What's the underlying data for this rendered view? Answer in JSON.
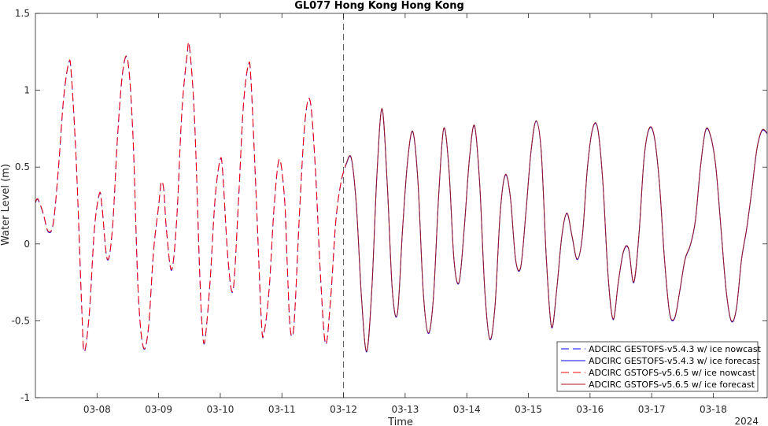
{
  "chart_data": {
    "type": "line",
    "title": "GL077 Hong Kong Hong Kong",
    "xlabel": "Time",
    "ylabel": "Water Level (m)",
    "year_label": "2024",
    "xlim": [
      "2024-03-07T00:00",
      "2024-03-18T21:00"
    ],
    "ylim": [
      -1,
      1.5
    ],
    "x_ticks": [
      "03-08",
      "03-09",
      "03-10",
      "03-11",
      "03-12",
      "03-13",
      "03-14",
      "03-15",
      "03-16",
      "03-17",
      "03-18"
    ],
    "y_ticks": [
      -1,
      -0.5,
      0,
      0.5,
      1,
      1.5
    ],
    "y_tick_labels": [
      "-1",
      "-0.5",
      "0",
      "0.5",
      "1",
      "1.5"
    ],
    "grid": false,
    "forecast_start": "2024-03-12T00:00",
    "legend_position": "bottom-right",
    "series": [
      {
        "name": "ADCIRC GESTOFS-v5.4.3 w/ ice nowcast",
        "color": "#0000ff",
        "dash": "dashed"
      },
      {
        "name": "ADCIRC GESTOFS-v5.4.3 w/ ice forecast",
        "color": "#0000ff",
        "dash": "solid"
      },
      {
        "name": "ADCIRC GSTOFS-v5.6.5 w/ ice nowcast",
        "color": "#ff0000",
        "dash": "dashed"
      },
      {
        "name": "ADCIRC GSTOFS-v5.6.5 w/ ice forecast",
        "color": "#a0181c",
        "dash": "solid"
      }
    ],
    "points": [
      [
        "2024-03-07T00:00",
        0.27
      ],
      [
        "2024-03-07T01:00",
        0.29
      ],
      [
        "2024-03-07T03:00",
        0.2
      ],
      [
        "2024-03-07T05:00",
        0.08
      ],
      [
        "2024-03-07T07:00",
        0.14
      ],
      [
        "2024-03-07T09:00",
        0.5
      ],
      [
        "2024-03-07T11:00",
        0.95
      ],
      [
        "2024-03-07T13:00",
        1.18
      ],
      [
        "2024-03-07T14:00",
        1.1
      ],
      [
        "2024-03-07T16:00",
        0.5
      ],
      [
        "2024-03-07T18:00",
        -0.4
      ],
      [
        "2024-03-07T19:00",
        -0.7
      ],
      [
        "2024-03-07T21:00",
        -0.45
      ],
      [
        "2024-03-07T23:00",
        0.1
      ],
      [
        "2024-03-08T01:00",
        0.33
      ],
      [
        "2024-03-08T02:00",
        0.23
      ],
      [
        "2024-03-08T04:00",
        -0.1
      ],
      [
        "2024-03-08T06:00",
        0.1
      ],
      [
        "2024-03-08T08:00",
        0.7
      ],
      [
        "2024-03-08T10:00",
        1.12
      ],
      [
        "2024-03-08T12:00",
        1.19
      ],
      [
        "2024-03-08T14:00",
        0.7
      ],
      [
        "2024-03-08T16:00",
        -0.3
      ],
      [
        "2024-03-08T18:00",
        -0.67
      ],
      [
        "2024-03-08T20:00",
        -0.55
      ],
      [
        "2024-03-08T22:00",
        -0.05
      ],
      [
        "2024-03-09T00:00",
        0.25
      ],
      [
        "2024-03-09T01:00",
        0.4
      ],
      [
        "2024-03-09T02:00",
        0.35
      ],
      [
        "2024-03-09T03:00",
        0.1
      ],
      [
        "2024-03-09T05:00",
        -0.17
      ],
      [
        "2024-03-09T07:00",
        0.15
      ],
      [
        "2024-03-09T09:00",
        0.85
      ],
      [
        "2024-03-09T11:00",
        1.22
      ],
      [
        "2024-03-09T12:00",
        1.28
      ],
      [
        "2024-03-09T14:00",
        0.8
      ],
      [
        "2024-03-09T16:00",
        -0.2
      ],
      [
        "2024-03-09T17:00",
        -0.55
      ],
      [
        "2024-03-09T18:00",
        -0.63
      ],
      [
        "2024-03-09T20:00",
        -0.25
      ],
      [
        "2024-03-09T22:00",
        0.3
      ],
      [
        "2024-03-10T00:00",
        0.55
      ],
      [
        "2024-03-10T01:00",
        0.45
      ],
      [
        "2024-03-10T03:00",
        -0.1
      ],
      [
        "2024-03-10T05:00",
        -0.3
      ],
      [
        "2024-03-10T07:00",
        0.25
      ],
      [
        "2024-03-10T09:00",
        0.9
      ],
      [
        "2024-03-10T11:00",
        1.17
      ],
      [
        "2024-03-10T12:00",
        1.05
      ],
      [
        "2024-03-10T14:00",
        0.3
      ],
      [
        "2024-03-10T16:00",
        -0.5
      ],
      [
        "2024-03-10T17:00",
        -0.58
      ],
      [
        "2024-03-10T19:00",
        -0.3
      ],
      [
        "2024-03-10T21:00",
        0.25
      ],
      [
        "2024-03-10T23:00",
        0.55
      ],
      [
        "2024-03-11T01:00",
        0.3
      ],
      [
        "2024-03-11T02:00",
        -0.1
      ],
      [
        "2024-03-11T03:00",
        -0.5
      ],
      [
        "2024-03-11T04:00",
        -0.6
      ],
      [
        "2024-03-11T05:00",
        -0.45
      ],
      [
        "2024-03-11T07:00",
        0.25
      ],
      [
        "2024-03-11T09:00",
        0.8
      ],
      [
        "2024-03-11T11:00",
        0.93
      ],
      [
        "2024-03-11T13:00",
        0.5
      ],
      [
        "2024-03-11T15:00",
        -0.2
      ],
      [
        "2024-03-11T17:00",
        -0.65
      ],
      [
        "2024-03-11T19:00",
        -0.35
      ],
      [
        "2024-03-11T21:00",
        0.15
      ],
      [
        "2024-03-11T23:00",
        0.4
      ],
      [
        "2024-03-12T01:00",
        0.52
      ],
      [
        "2024-03-12T03:00",
        0.56
      ],
      [
        "2024-03-12T05:00",
        0.25
      ],
      [
        "2024-03-12T07:00",
        -0.35
      ],
      [
        "2024-03-12T09:00",
        -0.7
      ],
      [
        "2024-03-12T11:00",
        -0.3
      ],
      [
        "2024-03-12T13:00",
        0.45
      ],
      [
        "2024-03-12T15:00",
        0.88
      ],
      [
        "2024-03-12T17:00",
        0.4
      ],
      [
        "2024-03-12T19:00",
        -0.3
      ],
      [
        "2024-03-12T21:00",
        -0.45
      ],
      [
        "2024-03-12T23:00",
        0.1
      ],
      [
        "2024-03-13T01:00",
        0.55
      ],
      [
        "2024-03-13T03:00",
        0.73
      ],
      [
        "2024-03-13T05:00",
        0.4
      ],
      [
        "2024-03-13T07:00",
        -0.3
      ],
      [
        "2024-03-13T09:00",
        -0.58
      ],
      [
        "2024-03-13T11:00",
        -0.35
      ],
      [
        "2024-03-13T13:00",
        0.3
      ],
      [
        "2024-03-13T15:00",
        0.75
      ],
      [
        "2024-03-13T17:00",
        0.5
      ],
      [
        "2024-03-13T19:00",
        -0.1
      ],
      [
        "2024-03-13T21:00",
        -0.25
      ],
      [
        "2024-03-13T23:00",
        0.1
      ],
      [
        "2024-03-14T01:00",
        0.55
      ],
      [
        "2024-03-14T03:00",
        0.77
      ],
      [
        "2024-03-14T05:00",
        0.4
      ],
      [
        "2024-03-14T07:00",
        -0.3
      ],
      [
        "2024-03-14T09:00",
        -0.62
      ],
      [
        "2024-03-14T11:00",
        -0.4
      ],
      [
        "2024-03-14T13:00",
        0.2
      ],
      [
        "2024-03-14T15:00",
        0.45
      ],
      [
        "2024-03-14T17:00",
        0.3
      ],
      [
        "2024-03-14T19:00",
        -0.1
      ],
      [
        "2024-03-14T21:00",
        -0.15
      ],
      [
        "2024-03-14T23:00",
        0.2
      ],
      [
        "2024-03-15T01:00",
        0.6
      ],
      [
        "2024-03-15T03:00",
        0.8
      ],
      [
        "2024-03-15T05:00",
        0.6
      ],
      [
        "2024-03-15T07:00",
        -0.1
      ],
      [
        "2024-03-15T09:00",
        -0.54
      ],
      [
        "2024-03-15T11:00",
        -0.3
      ],
      [
        "2024-03-15T13:00",
        0.05
      ],
      [
        "2024-03-15T15:00",
        0.2
      ],
      [
        "2024-03-15T17:00",
        0.05
      ],
      [
        "2024-03-15T19:00",
        -0.1
      ],
      [
        "2024-03-15T21:00",
        0.05
      ],
      [
        "2024-03-15T23:00",
        0.5
      ],
      [
        "2024-03-16T01:00",
        0.75
      ],
      [
        "2024-03-16T03:00",
        0.75
      ],
      [
        "2024-03-16T05:00",
        0.4
      ],
      [
        "2024-03-16T07:00",
        -0.2
      ],
      [
        "2024-03-16T09:00",
        -0.49
      ],
      [
        "2024-03-16T11:00",
        -0.25
      ],
      [
        "2024-03-16T13:00",
        -0.05
      ],
      [
        "2024-03-16T15:00",
        -0.03
      ],
      [
        "2024-03-16T17:00",
        -0.25
      ],
      [
        "2024-03-16T19:00",
        0.05
      ],
      [
        "2024-03-16T21:00",
        0.55
      ],
      [
        "2024-03-16T23:00",
        0.75
      ],
      [
        "2024-03-17T01:00",
        0.7
      ],
      [
        "2024-03-17T03:00",
        0.4
      ],
      [
        "2024-03-17T05:00",
        -0.1
      ],
      [
        "2024-03-17T07:00",
        -0.45
      ],
      [
        "2024-03-17T09:00",
        -0.48
      ],
      [
        "2024-03-17T11:00",
        -0.3
      ],
      [
        "2024-03-17T13:00",
        -0.1
      ],
      [
        "2024-03-17T15:00",
        -0.01
      ],
      [
        "2024-03-17T17:00",
        0.15
      ],
      [
        "2024-03-17T19:00",
        0.5
      ],
      [
        "2024-03-17T21:00",
        0.74
      ],
      [
        "2024-03-17T23:00",
        0.7
      ],
      [
        "2024-03-18T01:00",
        0.5
      ],
      [
        "2024-03-18T03:00",
        0.1
      ],
      [
        "2024-03-18T05:00",
        -0.3
      ],
      [
        "2024-03-18T07:00",
        -0.5
      ],
      [
        "2024-03-18T09:00",
        -0.42
      ],
      [
        "2024-03-18T11:00",
        -0.1
      ],
      [
        "2024-03-18T13:00",
        0.1
      ],
      [
        "2024-03-18T15:00",
        0.35
      ],
      [
        "2024-03-18T17:00",
        0.62
      ],
      [
        "2024-03-18T19:00",
        0.74
      ],
      [
        "2024-03-18T21:00",
        0.72
      ]
    ]
  }
}
